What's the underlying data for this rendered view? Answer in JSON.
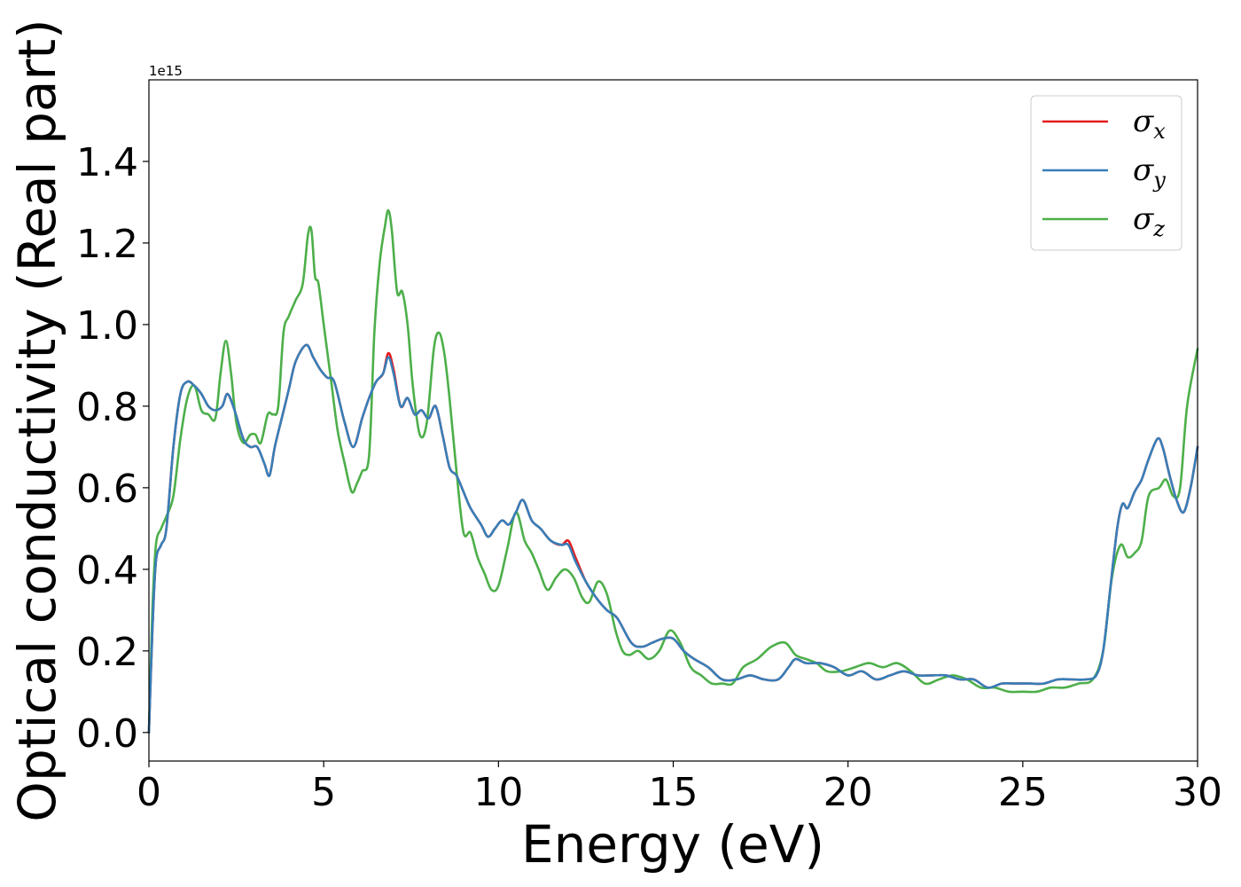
{
  "chart_data": {
    "type": "line",
    "title": "",
    "xlabel": "Energy (eV)",
    "ylabel": "Optical conductivity (Real part)",
    "y_offset_label": "1e15",
    "xlim": [
      0,
      30
    ],
    "ylim": [
      -0.07,
      1.6
    ],
    "xticks": [
      0,
      5,
      10,
      15,
      20,
      25,
      30
    ],
    "yticks": [
      0.0,
      0.2,
      0.4,
      0.6,
      0.8,
      1.0,
      1.2,
      1.4
    ],
    "grid": false,
    "legend_position": "top-right",
    "series": [
      {
        "name": "σx",
        "legend_symbol": "σ",
        "legend_subscript": "x",
        "color": "#e41a1c",
        "x": [
          0,
          0.1,
          0.2,
          0.35,
          0.5,
          0.7,
          0.9,
          1.1,
          1.3,
          1.5,
          1.7,
          1.9,
          2.1,
          2.25,
          2.45,
          2.7,
          2.9,
          3.1,
          3.3,
          3.45,
          3.6,
          3.8,
          4.0,
          4.2,
          4.5,
          4.7,
          4.9,
          5.1,
          5.3,
          5.6,
          5.85,
          6.1,
          6.3,
          6.5,
          6.7,
          6.85,
          7.0,
          7.2,
          7.4,
          7.6,
          7.8,
          8.0,
          8.2,
          8.4,
          8.6,
          8.8,
          9.0,
          9.2,
          9.5,
          9.7,
          9.9,
          10.1,
          10.3,
          10.5,
          10.7,
          10.95,
          11.2,
          11.5,
          11.8,
          12.0,
          12.2,
          12.5,
          12.8,
          13.1,
          13.4,
          13.8,
          14.1,
          14.4,
          14.7,
          15.0,
          15.3,
          15.6,
          16.0,
          16.4,
          16.8,
          17.2,
          17.6,
          18.0,
          18.3,
          18.5,
          18.8,
          19.2,
          19.6,
          20.0,
          20.4,
          20.8,
          21.2,
          21.6,
          22.0,
          22.4,
          22.8,
          23.2,
          23.6,
          24.0,
          24.4,
          24.8,
          25.2,
          25.6,
          26.0,
          26.4,
          26.8,
          27.1,
          27.3,
          27.5,
          27.7,
          27.85,
          28.0,
          28.2,
          28.4,
          28.6,
          28.85,
          29.0,
          29.2,
          29.4,
          29.6,
          29.8,
          30.0
        ],
        "y": [
          0.0,
          0.25,
          0.42,
          0.46,
          0.5,
          0.7,
          0.83,
          0.86,
          0.85,
          0.83,
          0.8,
          0.79,
          0.8,
          0.83,
          0.79,
          0.72,
          0.7,
          0.7,
          0.66,
          0.63,
          0.7,
          0.77,
          0.84,
          0.91,
          0.95,
          0.92,
          0.89,
          0.87,
          0.86,
          0.76,
          0.7,
          0.77,
          0.82,
          0.86,
          0.88,
          0.93,
          0.89,
          0.8,
          0.82,
          0.78,
          0.79,
          0.77,
          0.8,
          0.73,
          0.65,
          0.63,
          0.59,
          0.55,
          0.51,
          0.48,
          0.5,
          0.52,
          0.51,
          0.54,
          0.57,
          0.52,
          0.5,
          0.47,
          0.46,
          0.47,
          0.43,
          0.37,
          0.33,
          0.3,
          0.28,
          0.22,
          0.21,
          0.22,
          0.23,
          0.23,
          0.2,
          0.18,
          0.16,
          0.13,
          0.13,
          0.14,
          0.13,
          0.13,
          0.16,
          0.18,
          0.17,
          0.17,
          0.16,
          0.14,
          0.15,
          0.13,
          0.14,
          0.15,
          0.14,
          0.14,
          0.14,
          0.13,
          0.13,
          0.11,
          0.12,
          0.12,
          0.12,
          0.12,
          0.13,
          0.13,
          0.13,
          0.14,
          0.2,
          0.35,
          0.5,
          0.56,
          0.55,
          0.59,
          0.62,
          0.67,
          0.72,
          0.7,
          0.63,
          0.57,
          0.54,
          0.6,
          0.7
        ]
      },
      {
        "name": "σy",
        "legend_symbol": "σ",
        "legend_subscript": "y",
        "color": "#377eb8",
        "x": [
          0,
          0.1,
          0.2,
          0.35,
          0.5,
          0.7,
          0.9,
          1.1,
          1.3,
          1.5,
          1.7,
          1.9,
          2.1,
          2.25,
          2.45,
          2.7,
          2.9,
          3.1,
          3.3,
          3.45,
          3.6,
          3.8,
          4.0,
          4.2,
          4.5,
          4.7,
          4.9,
          5.1,
          5.3,
          5.6,
          5.85,
          6.1,
          6.3,
          6.5,
          6.7,
          6.85,
          7.0,
          7.2,
          7.4,
          7.6,
          7.8,
          8.0,
          8.2,
          8.4,
          8.6,
          8.8,
          9.0,
          9.2,
          9.5,
          9.7,
          9.9,
          10.1,
          10.3,
          10.5,
          10.7,
          10.95,
          11.2,
          11.5,
          11.8,
          12.0,
          12.2,
          12.5,
          12.8,
          13.1,
          13.4,
          13.8,
          14.1,
          14.4,
          14.7,
          15.0,
          15.3,
          15.6,
          16.0,
          16.4,
          16.8,
          17.2,
          17.6,
          18.0,
          18.3,
          18.5,
          18.8,
          19.2,
          19.6,
          20.0,
          20.4,
          20.8,
          21.2,
          21.6,
          22.0,
          22.4,
          22.8,
          23.2,
          23.6,
          24.0,
          24.4,
          24.8,
          25.2,
          25.6,
          26.0,
          26.4,
          26.8,
          27.1,
          27.3,
          27.5,
          27.7,
          27.85,
          28.0,
          28.2,
          28.4,
          28.6,
          28.85,
          29.0,
          29.2,
          29.4,
          29.6,
          29.8,
          30.0
        ],
        "y": [
          0.0,
          0.25,
          0.42,
          0.46,
          0.5,
          0.7,
          0.83,
          0.86,
          0.85,
          0.83,
          0.8,
          0.79,
          0.8,
          0.83,
          0.79,
          0.72,
          0.7,
          0.7,
          0.66,
          0.63,
          0.7,
          0.77,
          0.84,
          0.91,
          0.95,
          0.92,
          0.89,
          0.87,
          0.86,
          0.76,
          0.7,
          0.77,
          0.82,
          0.86,
          0.88,
          0.92,
          0.88,
          0.8,
          0.82,
          0.78,
          0.79,
          0.77,
          0.8,
          0.73,
          0.65,
          0.63,
          0.59,
          0.55,
          0.51,
          0.48,
          0.5,
          0.52,
          0.51,
          0.54,
          0.57,
          0.52,
          0.5,
          0.47,
          0.46,
          0.46,
          0.42,
          0.37,
          0.33,
          0.3,
          0.28,
          0.22,
          0.21,
          0.22,
          0.23,
          0.23,
          0.2,
          0.18,
          0.16,
          0.13,
          0.13,
          0.14,
          0.13,
          0.13,
          0.16,
          0.18,
          0.17,
          0.17,
          0.16,
          0.14,
          0.15,
          0.13,
          0.14,
          0.15,
          0.14,
          0.14,
          0.14,
          0.13,
          0.13,
          0.11,
          0.12,
          0.12,
          0.12,
          0.12,
          0.13,
          0.13,
          0.13,
          0.14,
          0.2,
          0.35,
          0.5,
          0.56,
          0.55,
          0.59,
          0.62,
          0.67,
          0.72,
          0.7,
          0.63,
          0.57,
          0.54,
          0.6,
          0.7
        ]
      },
      {
        "name": "σz",
        "legend_symbol": "σ",
        "legend_subscript": "z",
        "color": "#4daf4a",
        "x": [
          0,
          0.1,
          0.2,
          0.35,
          0.5,
          0.7,
          0.9,
          1.1,
          1.3,
          1.5,
          1.7,
          1.9,
          2.05,
          2.2,
          2.35,
          2.5,
          2.7,
          2.9,
          3.05,
          3.2,
          3.4,
          3.55,
          3.7,
          3.85,
          4.0,
          4.2,
          4.4,
          4.55,
          4.65,
          4.75,
          4.85,
          5.0,
          5.2,
          5.4,
          5.6,
          5.8,
          5.95,
          6.1,
          6.3,
          6.45,
          6.6,
          6.75,
          6.85,
          6.95,
          7.1,
          7.25,
          7.4,
          7.55,
          7.75,
          7.95,
          8.15,
          8.3,
          8.45,
          8.6,
          8.8,
          9.0,
          9.2,
          9.4,
          9.6,
          9.8,
          10.0,
          10.25,
          10.5,
          10.75,
          10.95,
          11.15,
          11.4,
          11.65,
          11.9,
          12.15,
          12.4,
          12.6,
          12.85,
          13.1,
          13.35,
          13.55,
          13.75,
          14.0,
          14.3,
          14.6,
          14.9,
          15.2,
          15.5,
          15.8,
          16.1,
          16.4,
          16.7,
          17.0,
          17.4,
          17.8,
          18.2,
          18.5,
          18.8,
          19.1,
          19.4,
          19.8,
          20.2,
          20.6,
          21.0,
          21.4,
          21.8,
          22.2,
          22.6,
          23.0,
          23.4,
          23.8,
          24.2,
          24.6,
          25.0,
          25.4,
          25.8,
          26.2,
          26.6,
          27.0,
          27.3,
          27.55,
          27.8,
          28.0,
          28.2,
          28.4,
          28.6,
          28.9,
          29.1,
          29.3,
          29.5,
          29.7,
          30.0
        ],
        "y": [
          0.0,
          0.3,
          0.46,
          0.5,
          0.53,
          0.58,
          0.72,
          0.82,
          0.85,
          0.79,
          0.78,
          0.77,
          0.88,
          0.96,
          0.88,
          0.76,
          0.71,
          0.73,
          0.73,
          0.71,
          0.78,
          0.78,
          0.8,
          0.98,
          1.02,
          1.06,
          1.1,
          1.22,
          1.23,
          1.12,
          1.1,
          1.0,
          0.87,
          0.74,
          0.66,
          0.59,
          0.61,
          0.64,
          0.68,
          0.98,
          1.15,
          1.24,
          1.28,
          1.23,
          1.08,
          1.08,
          1.0,
          0.85,
          0.73,
          0.76,
          0.94,
          0.98,
          0.93,
          0.82,
          0.64,
          0.49,
          0.49,
          0.43,
          0.39,
          0.35,
          0.36,
          0.45,
          0.54,
          0.47,
          0.44,
          0.4,
          0.35,
          0.38,
          0.4,
          0.38,
          0.33,
          0.32,
          0.37,
          0.34,
          0.25,
          0.2,
          0.19,
          0.2,
          0.18,
          0.2,
          0.25,
          0.22,
          0.16,
          0.14,
          0.12,
          0.12,
          0.12,
          0.16,
          0.18,
          0.21,
          0.22,
          0.19,
          0.18,
          0.17,
          0.15,
          0.15,
          0.16,
          0.17,
          0.16,
          0.17,
          0.15,
          0.12,
          0.13,
          0.14,
          0.13,
          0.11,
          0.11,
          0.1,
          0.1,
          0.1,
          0.11,
          0.11,
          0.12,
          0.13,
          0.2,
          0.38,
          0.46,
          0.43,
          0.44,
          0.47,
          0.58,
          0.6,
          0.62,
          0.58,
          0.6,
          0.8,
          0.94
        ]
      }
    ]
  }
}
